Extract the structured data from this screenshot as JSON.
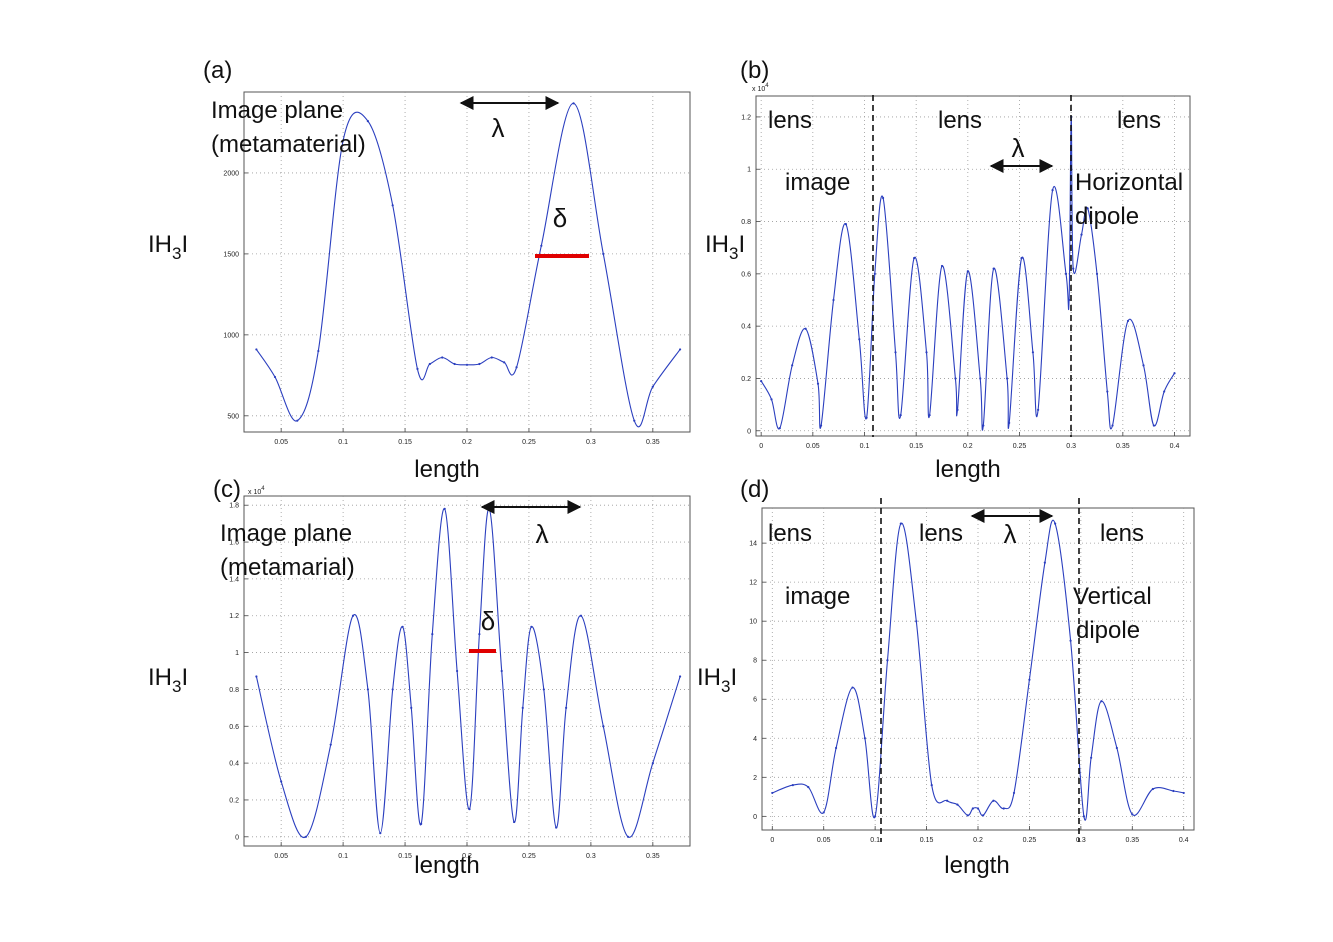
{
  "chart_data": [
    {
      "id": "a",
      "type": "line",
      "panel_label": "(a)",
      "xlabel": "length",
      "ylabel": "IH3I",
      "ylabel_parts": {
        "main": "IH",
        "sub": "3",
        "end": "I"
      },
      "exponent_label": "",
      "xlim": [
        0.02,
        0.38
      ],
      "ylim": [
        400,
        2500
      ],
      "xticks": [
        0.05,
        0.1,
        0.15,
        0.2,
        0.25,
        0.3,
        0.35
      ],
      "xtick_labels": [
        "0.05",
        "0.1",
        "0.15",
        "0.2",
        "0.25",
        "0.3",
        "0.35"
      ],
      "yticks": [
        500,
        1000,
        1500,
        2000
      ],
      "ytick_labels": [
        "500",
        "1000",
        "1500",
        "2000"
      ],
      "grid": true,
      "series": [
        {
          "x": [
            0.03,
            0.045,
            0.063,
            0.08,
            0.1,
            0.12,
            0.14,
            0.16,
            0.17,
            0.18,
            0.19,
            0.2,
            0.21,
            0.22,
            0.23,
            0.24,
            0.26,
            0.286,
            0.31,
            0.335,
            0.35,
            0.372
          ],
          "y": [
            910,
            740,
            470,
            900,
            2200,
            2320,
            1800,
            790,
            820,
            860,
            820,
            815,
            820,
            860,
            830,
            800,
            1550,
            2430,
            1500,
            470,
            680,
            910
          ]
        }
      ],
      "annotations": [
        {
          "type": "text",
          "lines": [
            "Image plane",
            "(metamaterial)"
          ]
        },
        {
          "type": "arrow",
          "label": "λ",
          "x": [
            0.2,
            0.286
          ],
          "y": 2400
        },
        {
          "type": "bar",
          "label": "δ",
          "x": [
            0.265,
            0.311
          ],
          "y": 1550,
          "color": "#e00000"
        }
      ]
    },
    {
      "id": "b",
      "type": "line",
      "panel_label": "(b)",
      "xlabel": "length",
      "ylabel": "IH3I",
      "ylabel_parts": {
        "main": "IH",
        "sub": "3",
        "end": "I"
      },
      "exponent_label": "x 10",
      "exponent_power": "4",
      "xlim": [
        -0.005,
        0.415
      ],
      "ylim": [
        -0.02,
        1.28
      ],
      "xticks": [
        0,
        0.05,
        0.1,
        0.15,
        0.2,
        0.25,
        0.3,
        0.35,
        0.4
      ],
      "xtick_labels": [
        "0",
        "0.05",
        "0.1",
        "0.15",
        "0.2",
        "0.25",
        "0.3",
        "0.35",
        "0.4"
      ],
      "yticks": [
        0,
        0.2,
        0.4,
        0.6,
        0.8,
        1,
        1.2
      ],
      "ytick_labels": [
        "0",
        "0.2",
        "0.4",
        "0.6",
        "0.8",
        "1",
        "1.2"
      ],
      "grid": true,
      "series": [
        {
          "x": [
            0,
            0.01,
            0.018,
            0.03,
            0.043,
            0.055,
            0.058,
            0.07,
            0.082,
            0.095,
            0.102,
            0.11,
            0.118,
            0.13,
            0.135,
            0.148,
            0.16,
            0.163,
            0.175,
            0.188,
            0.19,
            0.2,
            0.212,
            0.215,
            0.225,
            0.238,
            0.24,
            0.252,
            0.263,
            0.268,
            0.282,
            0.295,
            0.298,
            0.3,
            0.302,
            0.31,
            0.316,
            0.325,
            0.335,
            0.34,
            0.355,
            0.37,
            0.38,
            0.39,
            0.4
          ],
          "y": [
            0.19,
            0.12,
            0.01,
            0.25,
            0.39,
            0.18,
            0.02,
            0.5,
            0.79,
            0.35,
            0.05,
            0.6,
            0.89,
            0.3,
            0.06,
            0.66,
            0.3,
            0.06,
            0.63,
            0.2,
            0.08,
            0.61,
            0.2,
            0.02,
            0.62,
            0.2,
            0.03,
            0.66,
            0.3,
            0.08,
            0.92,
            0.6,
            0.5,
            1.2,
            0.62,
            0.75,
            0.85,
            0.6,
            0.15,
            0.02,
            0.42,
            0.25,
            0.02,
            0.15,
            0.22
          ]
        }
      ],
      "annotations": [
        {
          "type": "vline",
          "x": 0.102
        },
        {
          "type": "vline",
          "x": 0.3
        },
        {
          "type": "text",
          "lines": [
            "lens"
          ]
        },
        {
          "type": "text",
          "lines": [
            "lens"
          ]
        },
        {
          "type": "text",
          "lines": [
            "lens"
          ]
        },
        {
          "type": "text",
          "lines": [
            "image"
          ]
        },
        {
          "type": "text",
          "lines": [
            "Horizontal",
            "dipole"
          ]
        },
        {
          "type": "arrow",
          "label": "λ",
          "x": [
            0.218,
            0.282
          ],
          "y": 1.0
        }
      ]
    },
    {
      "id": "c",
      "type": "line",
      "panel_label": "(c)",
      "xlabel": "length",
      "ylabel": "IH3I",
      "ylabel_parts": {
        "main": "IH",
        "sub": "3",
        "end": "I"
      },
      "exponent_label": "x 10",
      "exponent_power": "4",
      "xlim": [
        0.02,
        0.38
      ],
      "ylim": [
        -0.05,
        1.85
      ],
      "xticks": [
        0.05,
        0.1,
        0.15,
        0.2,
        0.25,
        0.3,
        0.35
      ],
      "xtick_labels": [
        "0.05",
        "0.1",
        "0.15",
        "0.2",
        "0.25",
        "0.3",
        "0.35"
      ],
      "yticks": [
        0,
        0.2,
        0.4,
        0.6,
        0.8,
        1,
        1.2,
        1.4,
        1.6,
        1.8
      ],
      "ytick_labels": [
        "0",
        "0.2",
        "0.4",
        "0.6",
        "0.8",
        "1",
        "1.2",
        "1.4",
        "1.6",
        "1.8"
      ],
      "grid": true,
      "series": [
        {
          "x": [
            0.03,
            0.05,
            0.07,
            0.09,
            0.108,
            0.12,
            0.13,
            0.14,
            0.148,
            0.155,
            0.163,
            0.172,
            0.182,
            0.192,
            0.202,
            0.21,
            0.218,
            0.228,
            0.238,
            0.245,
            0.252,
            0.262,
            0.272,
            0.28,
            0.292,
            0.31,
            0.33,
            0.35,
            0.372
          ],
          "y": [
            0.87,
            0.3,
            0.0,
            0.5,
            1.2,
            0.8,
            0.02,
            0.8,
            1.14,
            0.7,
            0.07,
            1.1,
            1.78,
            0.9,
            0.15,
            1.1,
            1.78,
            0.9,
            0.08,
            0.7,
            1.14,
            0.8,
            0.05,
            0.7,
            1.2,
            0.6,
            0.0,
            0.4,
            0.87
          ]
        }
      ],
      "annotations": [
        {
          "type": "text",
          "lines": [
            "Image plane",
            "(metamarial)"
          ]
        },
        {
          "type": "arrow",
          "label": "λ",
          "x": [
            0.218,
            0.305
          ],
          "y": 1.8
        },
        {
          "type": "bar",
          "label": "δ",
          "x": [
            0.206,
            0.23
          ],
          "y": 0.97,
          "color": "#e00000"
        }
      ]
    },
    {
      "id": "d",
      "type": "line",
      "panel_label": "(d)",
      "xlabel": "length",
      "ylabel": "IH3I",
      "ylabel_parts": {
        "main": "IH",
        "sub": "3",
        "end": "I"
      },
      "exponent_label": "",
      "xlim": [
        -0.01,
        0.41
      ],
      "ylim": [
        -0.7,
        15.8
      ],
      "xticks": [
        0,
        0.05,
        0.1,
        0.15,
        0.2,
        0.25,
        0.3,
        0.35,
        0.4
      ],
      "xtick_labels": [
        "0",
        "0.05",
        "0.1",
        "0.15",
        "0.2",
        "0.25",
        "0.3",
        "0.35",
        "0.4"
      ],
      "yticks": [
        0,
        2,
        4,
        6,
        8,
        10,
        12,
        14
      ],
      "ytick_labels": [
        "0",
        "2",
        "4",
        "6",
        "8",
        "10",
        "12",
        "14"
      ],
      "grid": true,
      "series": [
        {
          "x": [
            0,
            0.02,
            0.035,
            0.05,
            0.062,
            0.078,
            0.09,
            0.1,
            0.112,
            0.125,
            0.14,
            0.155,
            0.17,
            0.18,
            0.19,
            0.195,
            0.2,
            0.205,
            0.215,
            0.225,
            0.235,
            0.25,
            0.265,
            0.275,
            0.29,
            0.303,
            0.31,
            0.32,
            0.335,
            0.35,
            0.37,
            0.39,
            0.4
          ],
          "y": [
            1.2,
            1.6,
            1.5,
            0.2,
            3.5,
            6.6,
            4.0,
            0.0,
            8.0,
            15.0,
            10.0,
            1.6,
            0.8,
            0.6,
            0.05,
            0.4,
            0.4,
            0.05,
            0.8,
            0.4,
            1.2,
            7.0,
            13.0,
            15.0,
            9.0,
            0.0,
            3.0,
            5.9,
            3.5,
            0.1,
            1.4,
            1.3,
            1.2
          ]
        }
      ],
      "annotations": [
        {
          "type": "vline",
          "x": 0.1
        },
        {
          "type": "vline",
          "x": 0.305
        },
        {
          "type": "text",
          "lines": [
            "lens"
          ]
        },
        {
          "type": "text",
          "lines": [
            "lens"
          ]
        },
        {
          "type": "text",
          "lines": [
            "lens"
          ]
        },
        {
          "type": "text",
          "lines": [
            "image"
          ]
        },
        {
          "type": "text",
          "lines": [
            "Vertical",
            "dipole"
          ]
        },
        {
          "type": "arrow",
          "label": "λ",
          "x": [
            0.192,
            0.275
          ],
          "y": 15.0
        }
      ]
    }
  ]
}
